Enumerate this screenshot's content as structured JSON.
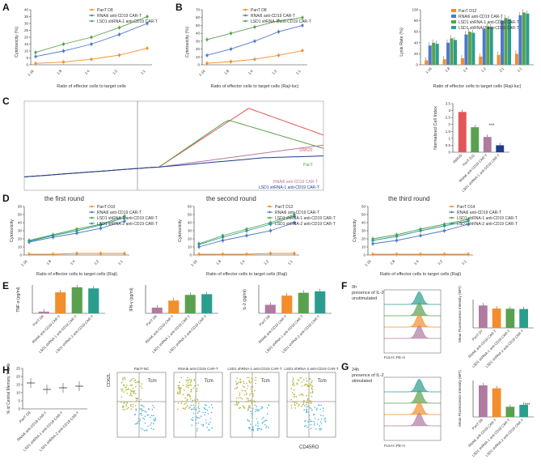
{
  "colors": {
    "pan": "#f28e2b",
    "rnai": "#4e79c7",
    "lsd1": "#59a14f",
    "lsd1b": "#2a9d8f",
    "red": "#e15759",
    "purple": "#b07aa1",
    "navy": "#1f3b8f"
  },
  "panel_labels": [
    "A",
    "B",
    "C",
    "D",
    "E",
    "F",
    "G",
    "H"
  ],
  "legends": {
    "A": [
      "PanT D8",
      "RNAi6 anti-CD19 CAR-T",
      "LSD1 shRNA-1 anti-CD19 CAR-T"
    ],
    "B": [
      "PanT D8",
      "RNAi6 anti-CD19 CAR-T",
      "LSD1 shRNA-1 anti-CD19 CAR-T"
    ],
    "Bbar": [
      "PanT D12",
      "RNAi6 anti-CD19 CAR-T",
      "LSD1 shRNA-1 anti-CD19 CAR-T",
      "LSD1 shRNA-2 anti-CD19 CAR-T"
    ],
    "D1": [
      "PanT D10",
      "RNAi6 anti-CD19 CAR-T",
      "LSD1 shRNA-1 anti-CD19 CAR-T",
      "LSD1 shRNA-2 anti-CD19 CAR-T"
    ],
    "D2": [
      "PanT D12",
      "RNAi6 anti-CD19 CAR-T",
      "LSD1 shRNA-1 anti-CD19 CAR-T",
      "LSD1 shRNA-2 anti-CD19 CAR-T"
    ],
    "D3": [
      "PanT D14",
      "RNAi6 anti-CD19 CAR-T",
      "LSD1 shRNA-1 anti-CD19 CAR-T",
      "LSD1 shRNA-2 anti-CD19 CAR-T"
    ]
  },
  "texts": {
    "A_xlabel": "Ratio of effector cells to target cells",
    "B_xlabel": "Ratio of effector cells to target cells (Raji-luc)",
    "Bbar_xlabel": "Ratio of effector cells to target cells (Raji-luc)",
    "D_xlabel": "Ratio of effector cells to target cells (Raji)",
    "ylabel_cyto": "Cytotoxicity (%)",
    "ylabel_lysis": "Lysis Rate (%)",
    "ylabel_nci": "Normalized Cell Index",
    "D1_title": "the first round",
    "D2_title": "the second round",
    "D3_title": "the third round",
    "C_curve_labels": [
      "SW620",
      "PanT",
      "RNAi6 anti-CD19 CAR-T",
      "LSD1 shRNA-1 anti-CD19 CAR-T"
    ],
    "F_text": [
      "0h",
      "presence of IL-2",
      "unstimulated"
    ],
    "G_text": [
      "24h",
      "presence of IL-2",
      "stimulated"
    ],
    "FG_xlabel": "FL5-H::PE-H",
    "FG_ylabel": "Mean Fluorescence Intensity (MFI)",
    "H_ylabel": "% of Central Memory T cells",
    "H_flow_titles": [
      "PanT-NC",
      "RNAi6 anti-CD19 CAR-T",
      "LSD1 shRNA-1 anti-CD19 CAR-T",
      "LSD1 shRNA-2 anti-CD19 CAR-T"
    ],
    "H_tcm": "Tcm",
    "H_xaxis": "CD45RO",
    "H_yaxis": "CD62L",
    "E_ylabels": [
      "TNF-α (pg/ml)",
      "IFN-γ (pg/ml)",
      "IL-2 (pg/ml)"
    ],
    "stars": "***"
  },
  "chart_data": [
    {
      "id": "A",
      "type": "line",
      "title": "",
      "xlabel": "Ratio of effector cells to target cells",
      "ylabel": "Cytotoxicity (%)",
      "categories": [
        "1:16",
        "1:8",
        "1:4",
        "1:2",
        "1:1"
      ],
      "ylim": [
        0,
        40
      ],
      "yticks": [
        0,
        5,
        10,
        15,
        20,
        25,
        30,
        35,
        40
      ],
      "series": [
        {
          "name": "PanT D8",
          "values": [
            1,
            2,
            4,
            7,
            12
          ]
        },
        {
          "name": "RNAi6 anti-CD19 CAR-T",
          "values": [
            6,
            10,
            15,
            22,
            30
          ]
        },
        {
          "name": "LSD1 shRNA-1 anti-CD19 CAR-T",
          "values": [
            9,
            15,
            20,
            27,
            35
          ]
        }
      ]
    },
    {
      "id": "B",
      "type": "line",
      "xlabel": "Ratio of effector cells to target cells (Raji-luc)",
      "ylabel": "Cytotoxicity (%)",
      "categories": [
        "1:16",
        "1:8",
        "1:4",
        "1:2",
        "1:1"
      ],
      "ylim": [
        0,
        70
      ],
      "yticks": [
        0,
        10,
        20,
        30,
        40,
        50,
        60,
        70
      ],
      "series": [
        {
          "name": "PanT D8",
          "values": [
            2,
            4,
            7,
            12,
            18
          ]
        },
        {
          "name": "RNAi6 anti-CD19 CAR-T",
          "values": [
            12,
            20,
            30,
            42,
            50
          ]
        },
        {
          "name": "LSD1 shRNA-1 anti-CD19 CAR-T",
          "values": [
            32,
            40,
            48,
            56,
            60
          ]
        }
      ]
    },
    {
      "id": "Bbar",
      "type": "bar",
      "xlabel": "Ratio of effector cells to target cells (Raji-luc)",
      "ylabel": "Lysis Rate (%)",
      "categories": [
        "1:16",
        "1:8",
        "1:4",
        "1:2",
        "2:1",
        "1:1"
      ],
      "ylim": [
        0,
        100
      ],
      "yticks": [
        0,
        20,
        40,
        60,
        80,
        100
      ],
      "series": [
        {
          "name": "PanT D12",
          "values": [
            8,
            10,
            12,
            15,
            18,
            20
          ]
        },
        {
          "name": "RNAi6 anti-CD19 CAR-T",
          "values": [
            35,
            40,
            55,
            65,
            80,
            90
          ]
        },
        {
          "name": "LSD1 shRNA-1 anti-CD19 CAR-T",
          "values": [
            40,
            48,
            60,
            70,
            85,
            95
          ]
        },
        {
          "name": "LSD1 shRNA-2 anti-CD19 CAR-T",
          "values": [
            38,
            45,
            58,
            68,
            83,
            93
          ]
        }
      ]
    },
    {
      "id": "Cbar",
      "type": "bar",
      "ylabel": "Normalized Cell Index",
      "categories": [
        "SW620",
        "PanT D11",
        "RNAi6 anti-CD19 CAR-T",
        "LSD1 shRNA-1 anti-CD19 CAR-T"
      ],
      "ylim": [
        0,
        3.5
      ],
      "yticks": [
        0,
        0.5,
        1.0,
        1.5,
        2.0,
        2.5,
        3.0,
        3.5
      ],
      "values": [
        2.9,
        1.8,
        1.1,
        0.5
      ]
    },
    {
      "id": "D1",
      "type": "line",
      "title": "the first round",
      "xlabel": "Ratio of effector cells to target cells (Raji)",
      "ylabel": "Cytotoxicity",
      "categories": [
        "1:16",
        "1:8",
        "1:4",
        "1:2",
        "1:1"
      ],
      "ylim": [
        0,
        60
      ],
      "yticks": [
        0,
        10,
        20,
        30,
        40,
        50,
        60
      ],
      "series": [
        {
          "name": "PanT D10",
          "values": [
            1,
            1,
            2,
            2,
            2
          ]
        },
        {
          "name": "RNAi6 anti-CD19 CAR-T",
          "values": [
            16,
            22,
            27,
            33,
            42
          ]
        },
        {
          "name": "LSD1 shRNA-1 anti-CD19 CAR-T",
          "values": [
            18,
            25,
            32,
            38,
            48
          ]
        },
        {
          "name": "LSD1 shRNA-2 anti-CD19 CAR-T",
          "values": [
            17,
            24,
            30,
            37,
            46
          ]
        }
      ]
    },
    {
      "id": "D2",
      "type": "line",
      "title": "the second round",
      "xlabel": "Ratio of effector cells to target cells (Raji)",
      "ylabel": "Cytotoxicity",
      "categories": [
        "1:16",
        "1:8",
        "1:4",
        "1:2",
        "1:1"
      ],
      "ylim": [
        0,
        60
      ],
      "yticks": [
        0,
        10,
        20,
        30,
        40,
        50,
        60
      ],
      "series": [
        {
          "name": "PanT D12",
          "values": [
            1,
            1,
            1,
            2,
            2
          ]
        },
        {
          "name": "RNAi6 anti-CD19 CAR-T",
          "values": [
            10,
            18,
            24,
            30,
            40
          ]
        },
        {
          "name": "LSD1 shRNA-1 anti-CD19 CAR-T",
          "values": [
            14,
            24,
            32,
            40,
            50
          ]
        },
        {
          "name": "LSD1 shRNA-2 anti-CD19 CAR-T",
          "values": [
            13,
            22,
            30,
            38,
            48
          ]
        }
      ]
    },
    {
      "id": "D3",
      "type": "line",
      "title": "the third round",
      "xlabel": "Ratio of effector cells to target cells (Raji)",
      "ylabel": "Cytotoxicity",
      "categories": [
        "1:16",
        "1:8",
        "1:4",
        "1:2",
        "1:1"
      ],
      "ylim": [
        0,
        60
      ],
      "yticks": [
        0,
        10,
        20,
        30,
        40,
        50,
        60
      ],
      "series": [
        {
          "name": "PanT D14",
          "values": [
            1,
            1,
            1,
            1,
            1
          ]
        },
        {
          "name": "RNAi6 anti-CD19 CAR-T",
          "values": [
            14,
            18,
            24,
            30,
            38
          ]
        },
        {
          "name": "LSD1 shRNA-1 anti-CD19 CAR-T",
          "values": [
            20,
            25,
            32,
            38,
            44
          ]
        },
        {
          "name": "LSD1 shRNA-2 anti-CD19 CAR-T",
          "values": [
            18,
            23,
            30,
            36,
            42
          ]
        }
      ]
    },
    {
      "id": "E1",
      "type": "bar",
      "ylabel": "TNF-α (pg/ml)",
      "categories": [
        "PanT D8",
        "RNAi6 anti-CD19 CAR-T",
        "LSD1 shRNA-1 anti-CD19 CAR-T",
        "LSD1 shRNA-2 anti-CD19 CAR-T"
      ],
      "ylim": [
        0,
        500
      ],
      "values": [
        30,
        370,
        460,
        440
      ]
    },
    {
      "id": "E2",
      "type": "bar",
      "ylabel": "IFN-γ (pg/ml)",
      "categories": [
        "PanT D8",
        "RNAi6 anti-CD19 CAR-T",
        "LSD1 shRNA-1 anti-CD19 CAR-T",
        "LSD1 shRNA-2 anti-CD19 CAR-T"
      ],
      "ylim": [
        0,
        2000
      ],
      "values": [
        400,
        900,
        1300,
        1350
      ]
    },
    {
      "id": "E3",
      "type": "bar",
      "ylabel": "IL-2 (pg/ml)",
      "categories": [
        "PanT D8",
        "RNAi6 anti-CD19 CAR-T",
        "LSD1 shRNA-1 anti-CD19 CAR-T",
        "LSD1 shRNA-2 anti-CD19 CAR-T"
      ],
      "ylim": [
        0,
        4000
      ],
      "values": [
        1200,
        2500,
        2900,
        3100
      ]
    },
    {
      "id": "Fbar",
      "type": "bar",
      "ylabel": "Mean Fluorescence Intensity (MFI)",
      "categories": [
        "PanT D7",
        "RNAi6 anti-CD19 CAR-T",
        "LSD1 shRNA-1 anti-CD19 CAR-T",
        "LSD1 shRNA-2 anti-CD19 CAR-T"
      ],
      "ylim": [
        0,
        12000
      ],
      "values": [
        9500,
        8200,
        8100,
        8000
      ]
    },
    {
      "id": "Gbar",
      "type": "bar",
      "ylabel": "Mean Fluorescence Intensity (MFI)",
      "categories": [
        "PanT D8",
        "RNAi6 anti-CD19 CAR-T",
        "LSD1 shRNA-1 anti-CD19 CAR-T",
        "LSD1 shRNA-2 anti-CD19 CAR-T"
      ],
      "ylim": [
        0,
        150000
      ],
      "values": [
        130000,
        118000,
        42000,
        50000
      ]
    },
    {
      "id": "Hdot",
      "type": "scatter",
      "ylabel": "% of Central Memory T cells",
      "categories": [
        "PanT D8",
        "RNAi6 anti-CD19 CAR-T",
        "LSD1 shRNA-1 anti-CD19 CAR-T",
        "LSD1 shRNA-2 anti-CD19 CAR-T"
      ],
      "ylim": [
        0,
        25
      ],
      "values": [
        16,
        12,
        13,
        14
      ]
    }
  ]
}
